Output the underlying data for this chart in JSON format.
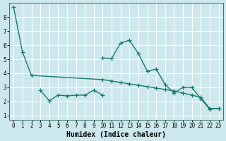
{
  "xlabel": "Humidex (Indice chaleur)",
  "background_color": "#cce8ec",
  "grid_color": "#b0d8de",
  "line_color": "#1a7a6e",
  "xlim": [
    -0.5,
    23.5
  ],
  "ylim": [
    0.7,
    9.0
  ],
  "yticks": [
    1,
    2,
    3,
    4,
    5,
    6,
    7,
    8
  ],
  "xticks": [
    0,
    1,
    2,
    3,
    4,
    5,
    6,
    7,
    8,
    9,
    10,
    11,
    12,
    13,
    14,
    15,
    16,
    17,
    18,
    19,
    20,
    21,
    22,
    23
  ],
  "series1": {
    "x": [
      0,
      1,
      2,
      10,
      11,
      12,
      13,
      14,
      15,
      16,
      17,
      18,
      19,
      20,
      21,
      22,
      23
    ],
    "y": [
      8.7,
      5.5,
      3.85,
      3.55,
      3.45,
      3.35,
      3.25,
      3.15,
      3.05,
      2.95,
      2.85,
      2.75,
      2.6,
      2.45,
      2.3,
      1.5,
      1.5
    ]
  },
  "series2": {
    "x": [
      10,
      11,
      12,
      13,
      14,
      15,
      16,
      17,
      18,
      19,
      20,
      21,
      22,
      23
    ],
    "y": [
      5.1,
      5.05,
      6.15,
      6.35,
      5.4,
      4.15,
      4.3,
      3.2,
      2.6,
      3.0,
      3.0,
      2.2,
      1.45,
      1.5
    ]
  },
  "series3": {
    "x": [
      3,
      4,
      5,
      6,
      7,
      8,
      9,
      10
    ],
    "y": [
      2.8,
      2.05,
      2.45,
      2.4,
      2.45,
      2.45,
      2.8,
      2.45
    ]
  },
  "marker": "+",
  "markersize": 4,
  "linewidth": 1.0
}
